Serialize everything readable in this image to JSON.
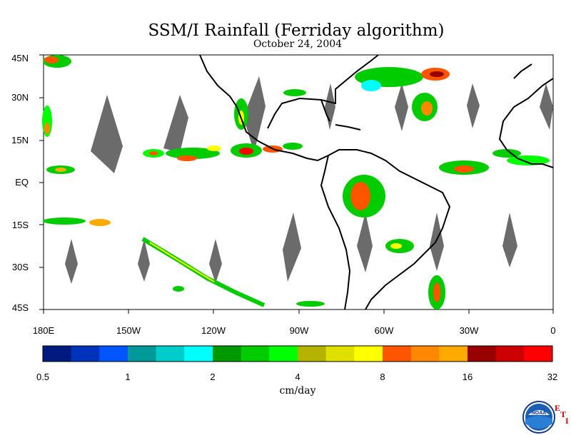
{
  "title": "SSM/I Rainfall (Ferriday algorithm)",
  "date": "October 24, 2004",
  "map": {
    "lat_labels": [
      "45N",
      "30N",
      "15N",
      "EQ",
      "15S",
      "30S",
      "45S"
    ],
    "lon_labels": [
      "180E",
      "150W",
      "120W",
      "90W",
      "60W",
      "30W",
      "0"
    ],
    "lat_range": [
      -45,
      45
    ],
    "lon_range": [
      -180,
      0
    ]
  },
  "legend": {
    "units": "cm/day",
    "colors": [
      "#001a80",
      "#0033bb",
      "#0055ff",
      "#009999",
      "#00cccc",
      "#00ffff",
      "#009900",
      "#00cc00",
      "#00ff00",
      "#b3b300",
      "#e0e000",
      "#ffff00",
      "#ff5500",
      "#ff8800",
      "#ffaa00",
      "#990000",
      "#cc0000",
      "#ff0000"
    ],
    "tick_labels": [
      "0.5",
      "1",
      "2",
      "4",
      "8",
      "16",
      "32"
    ]
  },
  "colors": {
    "land": "#ffffff",
    "coast": "#000000",
    "no_data": "#6b6b6b"
  },
  "logo": {
    "text": "NOAA",
    "letters": [
      "E",
      "T",
      "I"
    ]
  }
}
